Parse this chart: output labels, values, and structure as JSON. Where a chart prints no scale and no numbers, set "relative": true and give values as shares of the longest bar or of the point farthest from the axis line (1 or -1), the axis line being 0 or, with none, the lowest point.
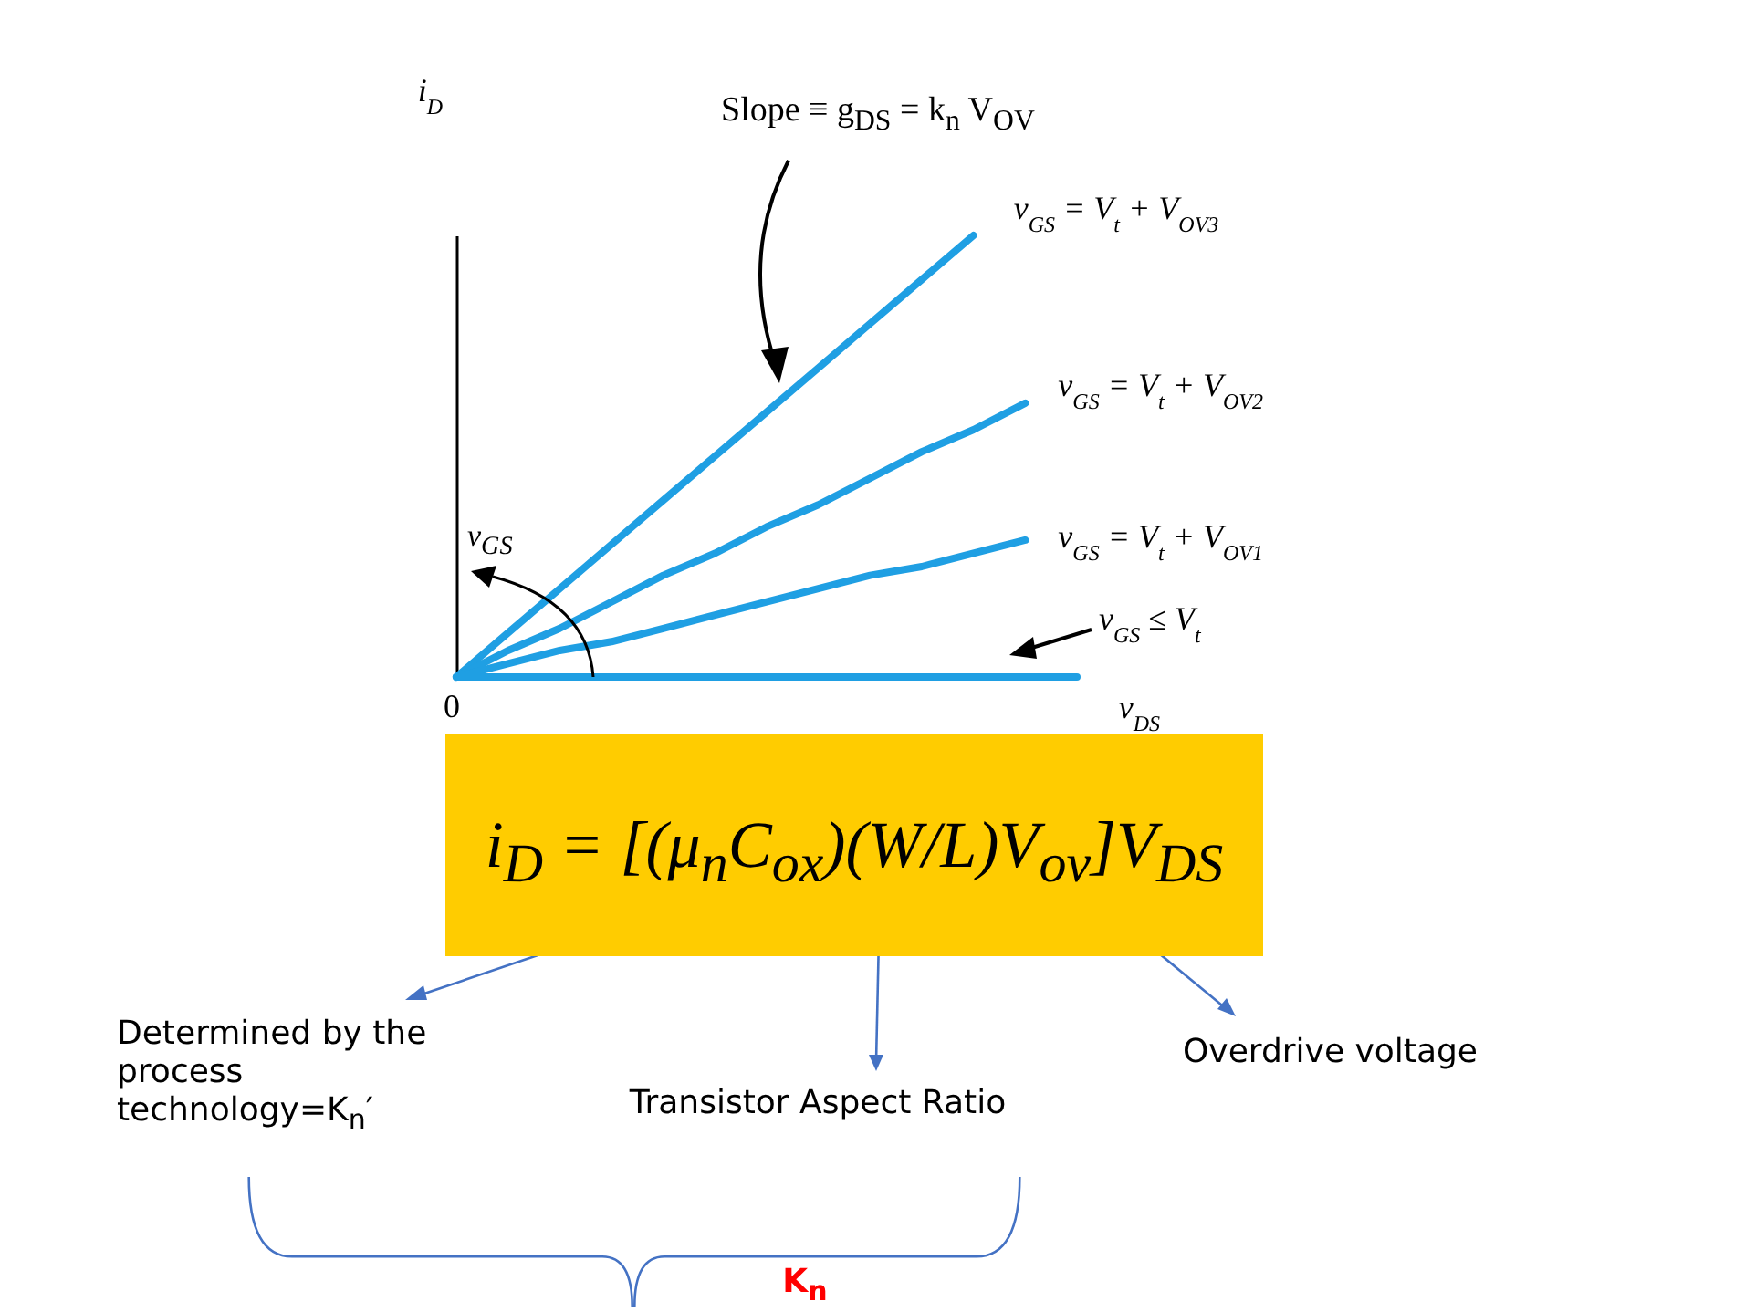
{
  "chart_data": {
    "type": "line",
    "relative": true,
    "xlabel": "v$_{DS}$",
    "ylabel": "i$_{D}$",
    "categories": [
      null,
      null,
      null,
      null,
      null,
      null,
      null,
      null,
      null,
      null,
      null,
      null,
      null
    ],
    "series": [
      {
        "name": "v$_{GS}$ = V$_{t}$ + V$_{OV3}$",
        "color": "#1f9fe3",
        "values": [
          0,
          0.1,
          0.2,
          0.3,
          0.4,
          0.5,
          0.6,
          0.7,
          0.8,
          0.9,
          1,
          null,
          null
        ]
      },
      {
        "name": "v$_{GS}$ = V$_{t}$ + V$_{OV2}$",
        "color": "#1f9fe3",
        "values": [
          0,
          0.06,
          0.11,
          0.17,
          0.23,
          0.28,
          0.34,
          0.39,
          0.45,
          0.51,
          0.56,
          0.62,
          null
        ]
      },
      {
        "name": "v$_{GS}$ = V$_{t}$ + V$_{OV1}$",
        "color": "#1f9fe3",
        "values": [
          0,
          0.03,
          0.06,
          0.08,
          0.11,
          0.14,
          0.17,
          0.2,
          0.23,
          0.25,
          0.28,
          0.31,
          null
        ]
      },
      {
        "name": "v$_{GS}$ ≤ V$_{t}$",
        "color": "#1f9fe3",
        "values": [
          0,
          0,
          0,
          0,
          0,
          0,
          0,
          0,
          0,
          0,
          0,
          0,
          0
        ]
      }
    ],
    "annotations": [
      "Slope ≡ g$_{DS}$ = k$_{n}$ V$_{OV}$",
      "v$_{GS}$",
      "0",
      "i$_{D}$ = [(μ$_{n}$C$_{ox}$)(W/L)V$_{ov}$]V$_{DS}$",
      "Determined by the process technology=K$_{n}$′",
      "Transistor Aspect Ratio",
      "Overdrive voltage",
      "K$_{n}$"
    ]
  }
}
